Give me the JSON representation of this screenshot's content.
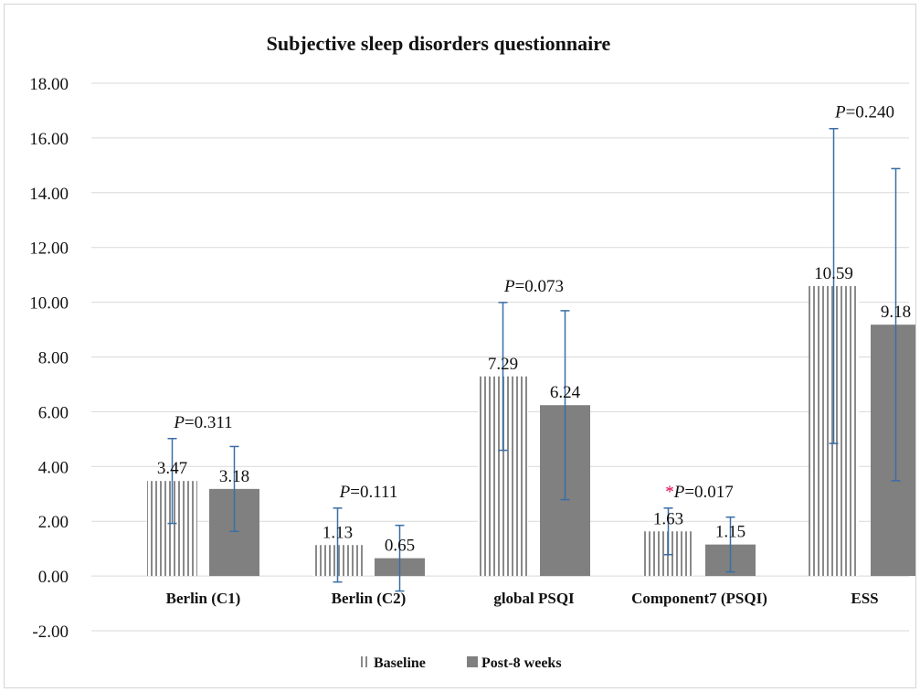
{
  "chart_data": {
    "type": "bar",
    "title": "Subjective sleep disorders questionnaire",
    "xlabel": "",
    "ylabel": "",
    "ylim": [
      -2,
      18
    ],
    "yticks": [
      "18.00",
      "16.00",
      "14.00",
      "12.00",
      "10.00",
      "8.00",
      "6.00",
      "4.00",
      "2.00",
      "0.00",
      "-2.00"
    ],
    "categories": [
      "Berlin (C1)",
      "Berlin (C2)",
      "global PSQI",
      "Component7 (PSQI)",
      "ESS"
    ],
    "series": [
      {
        "name": "Baseline",
        "values": [
          3.47,
          1.13,
          7.29,
          1.63,
          10.59
        ],
        "labels": [
          "3.47",
          "1.13",
          "7.29",
          "1.63",
          "10.59"
        ],
        "error": [
          1.55,
          1.35,
          2.7,
          0.85,
          5.75
        ]
      },
      {
        "name": "Post-8 weeks",
        "values": [
          3.18,
          0.65,
          6.24,
          1.15,
          9.18
        ],
        "labels": [
          "3.18",
          "0.65",
          "6.24",
          "1.15",
          "9.18"
        ],
        "error": [
          1.55,
          1.2,
          3.45,
          1.0,
          5.7
        ]
      }
    ],
    "p_values": [
      {
        "prefix": "P",
        "text": "=0.311",
        "star": ""
      },
      {
        "prefix": "P",
        "text": "=0.111",
        "star": ""
      },
      {
        "prefix": "P",
        "text": "=0.073",
        "star": ""
      },
      {
        "prefix": "P",
        "text": "=0.017",
        "star": "*"
      },
      {
        "prefix": "P",
        "text": "=0.240",
        "star": ""
      }
    ],
    "grid": true,
    "legend": "bottom-center",
    "colors": {
      "baseline_stripe": "#8a8a8a",
      "post": "#808080",
      "error_bar": "#3a6ea5",
      "star": "#e0004d",
      "grid": "#d9d9d9"
    }
  }
}
